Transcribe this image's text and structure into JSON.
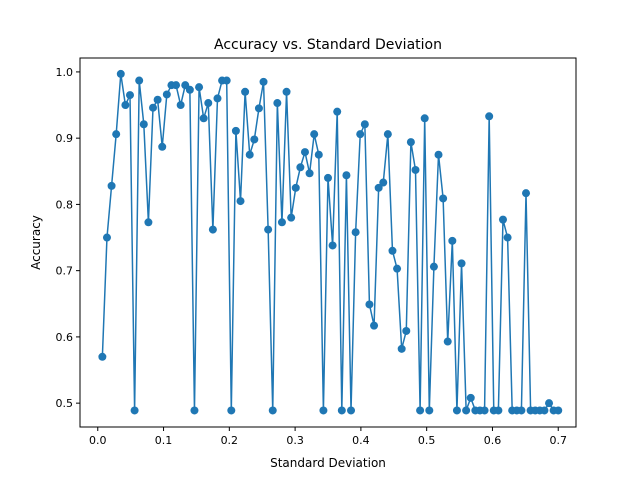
{
  "chart_data": {
    "type": "line",
    "title": "Accuracy vs. Standard Deviation",
    "xlabel": "Standard Deviation",
    "ylabel": "Accuracy",
    "xlim": [
      -0.027,
      0.727
    ],
    "ylim": [
      0.464,
      1.021
    ],
    "xticks": [
      0.0,
      0.1,
      0.2,
      0.3,
      0.4,
      0.5,
      0.6,
      0.7
    ],
    "xtick_labels": [
      "0.0",
      "0.1",
      "0.2",
      "0.3",
      "0.4",
      "0.5",
      "0.6",
      "0.7"
    ],
    "yticks": [
      0.5,
      0.6,
      0.7,
      0.8,
      0.9,
      1.0
    ],
    "ytick_labels": [
      "0.5",
      "0.6",
      "0.7",
      "0.8",
      "0.9",
      "1.0"
    ],
    "grid": false,
    "legend": "none",
    "colors": {
      "series": "#1f77b4",
      "axes": "#000000"
    },
    "series": [
      {
        "marker": "circle",
        "x": [
          0.007,
          0.014,
          0.021,
          0.028,
          0.035,
          0.042,
          0.049,
          0.056,
          0.063,
          0.07,
          0.077,
          0.084,
          0.091,
          0.098,
          0.105,
          0.112,
          0.119,
          0.126,
          0.133,
          0.14,
          0.147,
          0.154,
          0.161,
          0.168,
          0.175,
          0.182,
          0.189,
          0.196,
          0.203,
          0.21,
          0.217,
          0.224,
          0.231,
          0.238,
          0.245,
          0.252,
          0.259,
          0.266,
          0.273,
          0.28,
          0.287,
          0.294,
          0.301,
          0.308,
          0.315,
          0.322,
          0.329,
          0.336,
          0.343,
          0.35,
          0.357,
          0.364,
          0.371,
          0.378,
          0.385,
          0.392,
          0.399,
          0.406,
          0.413,
          0.42,
          0.427,
          0.434,
          0.441,
          0.448,
          0.455,
          0.462,
          0.469,
          0.476,
          0.483,
          0.49,
          0.497,
          0.504,
          0.511,
          0.518,
          0.525,
          0.532,
          0.539,
          0.546,
          0.553,
          0.56,
          0.567,
          0.574,
          0.581,
          0.588,
          0.595,
          0.602,
          0.609,
          0.616,
          0.623,
          0.63,
          0.637,
          0.644,
          0.651,
          0.658,
          0.665,
          0.672,
          0.679,
          0.686,
          0.693,
          0.7
        ],
        "y": [
          0.57,
          0.75,
          0.828,
          0.906,
          0.997,
          0.95,
          0.965,
          0.489,
          0.987,
          0.921,
          0.773,
          0.946,
          0.958,
          0.887,
          0.966,
          0.98,
          0.98,
          0.95,
          0.98,
          0.973,
          0.489,
          0.977,
          0.93,
          0.953,
          0.762,
          0.96,
          0.987,
          0.987,
          0.489,
          0.911,
          0.805,
          0.97,
          0.875,
          0.898,
          0.945,
          0.985,
          0.762,
          0.489,
          0.953,
          0.773,
          0.97,
          0.78,
          0.825,
          0.856,
          0.879,
          0.847,
          0.906,
          0.875,
          0.489,
          0.84,
          0.738,
          0.94,
          0.489,
          0.844,
          0.489,
          0.758,
          0.906,
          0.921,
          0.649,
          0.617,
          0.825,
          0.833,
          0.906,
          0.73,
          0.703,
          0.582,
          0.609,
          0.894,
          0.852,
          0.489,
          0.93,
          0.489,
          0.706,
          0.875,
          0.809,
          0.593,
          0.745,
          0.489,
          0.711,
          0.489,
          0.508,
          0.489,
          0.489,
          0.489,
          0.933,
          0.489,
          0.489,
          0.777,
          0.75,
          0.489,
          0.489,
          0.489,
          0.817,
          0.489,
          0.489,
          0.489,
          0.489,
          0.5,
          0.489,
          0.489
        ]
      }
    ]
  }
}
